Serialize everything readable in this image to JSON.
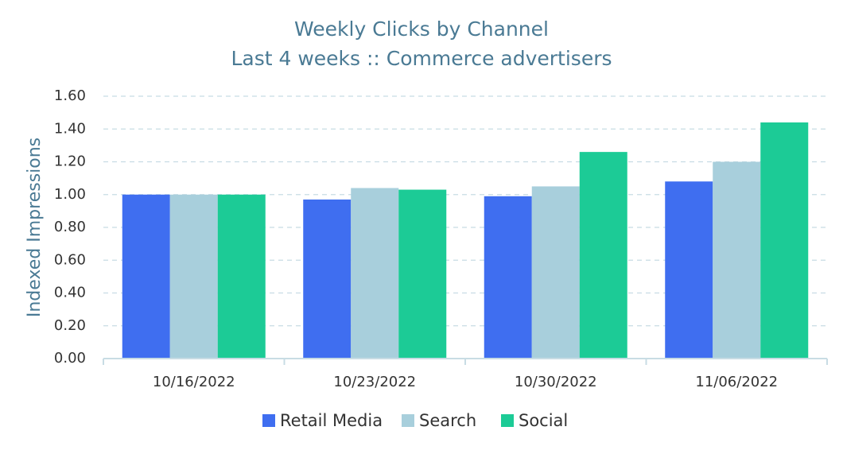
{
  "chart_data": {
    "type": "bar",
    "title": "Weekly Clicks by Channel",
    "subtitle": "Last 4 weeks :: Commerce advertisers",
    "y_label": "Indexed Impressions",
    "categories": [
      "10/16/2022",
      "10/23/2022",
      "10/30/2022",
      "11/06/2022"
    ],
    "series": [
      {
        "name": "Retail Media",
        "color": "#3f6ef0",
        "values": [
          1.0,
          0.97,
          0.99,
          1.08
        ]
      },
      {
        "name": "Search",
        "color": "#a8cfdc",
        "values": [
          1.0,
          1.04,
          1.05,
          1.2
        ]
      },
      {
        "name": "Social",
        "color": "#1ccb96",
        "values": [
          1.0,
          1.03,
          1.26,
          1.44
        ]
      }
    ],
    "ylim": [
      0,
      1.6
    ],
    "yticks": [
      {
        "value": 0,
        "label": "0.00"
      },
      {
        "value": 0.2,
        "label": "0.20"
      },
      {
        "value": 0.4,
        "label": "0.40"
      },
      {
        "value": 0.6,
        "label": "0.60"
      },
      {
        "value": 0.8,
        "label": "0.80"
      },
      {
        "value": 1,
        "label": "1.00"
      },
      {
        "value": 1.2,
        "label": "1.20"
      },
      {
        "value": 1.4,
        "label": "1.40"
      },
      {
        "value": 1.6,
        "label": "1.60"
      }
    ],
    "grid": true
  }
}
